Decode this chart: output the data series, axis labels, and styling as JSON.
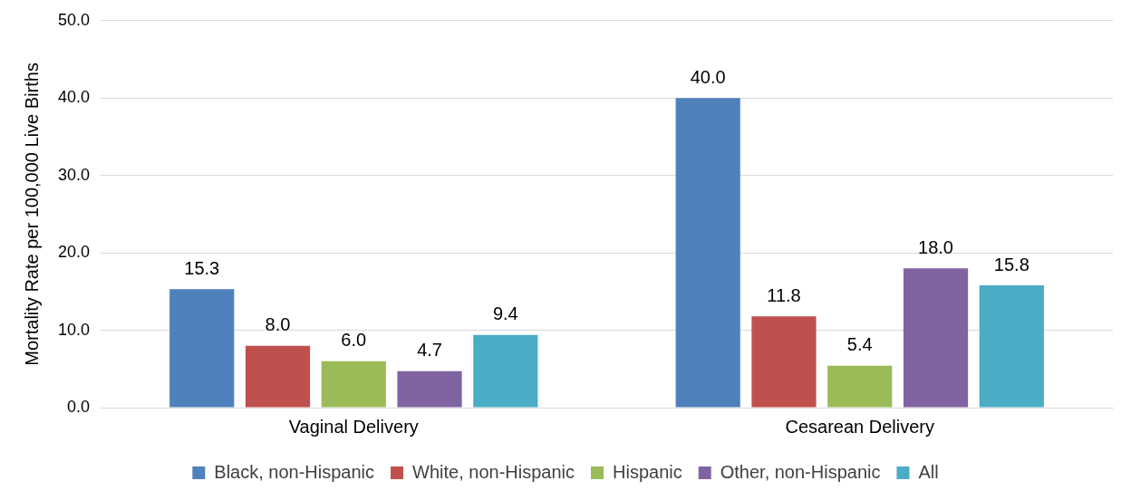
{
  "chart_data": {
    "type": "bar",
    "ylabel": "Mortality Rate per 100,000 Live Births",
    "categories": [
      "Vaginal Delivery",
      "Cesarean Delivery"
    ],
    "series": [
      {
        "name": "Black, non-Hispanic",
        "color": "#4f81bd",
        "values": [
          15.3,
          40.0
        ],
        "value_labels": [
          "15.3",
          "40.0"
        ]
      },
      {
        "name": "White, non-Hispanic",
        "color": "#c0504d",
        "values": [
          8.0,
          11.8
        ],
        "value_labels": [
          "8.0",
          "11.8"
        ]
      },
      {
        "name": "Hispanic",
        "color": "#9bbb59",
        "values": [
          6.0,
          5.4
        ],
        "value_labels": [
          "6.0",
          "5.4"
        ]
      },
      {
        "name": "Other, non-Hispanic",
        "color": "#8064a2",
        "values": [
          4.7,
          18.0
        ],
        "value_labels": [
          "4.7",
          "18.0"
        ]
      },
      {
        "name": "All",
        "color": "#4bacc6",
        "values": [
          9.4,
          15.8
        ],
        "value_labels": [
          "9.4",
          "15.8"
        ]
      }
    ],
    "ylim": [
      0,
      50
    ],
    "yticks": [
      {
        "value": 0,
        "label": "0.0"
      },
      {
        "value": 10,
        "label": "10.0"
      },
      {
        "value": 20,
        "label": "20.0"
      },
      {
        "value": 30,
        "label": "30.0"
      },
      {
        "value": 40,
        "label": "40.0"
      },
      {
        "value": 50,
        "label": "50.0"
      }
    ],
    "grid": "y",
    "legend": "bottom"
  }
}
